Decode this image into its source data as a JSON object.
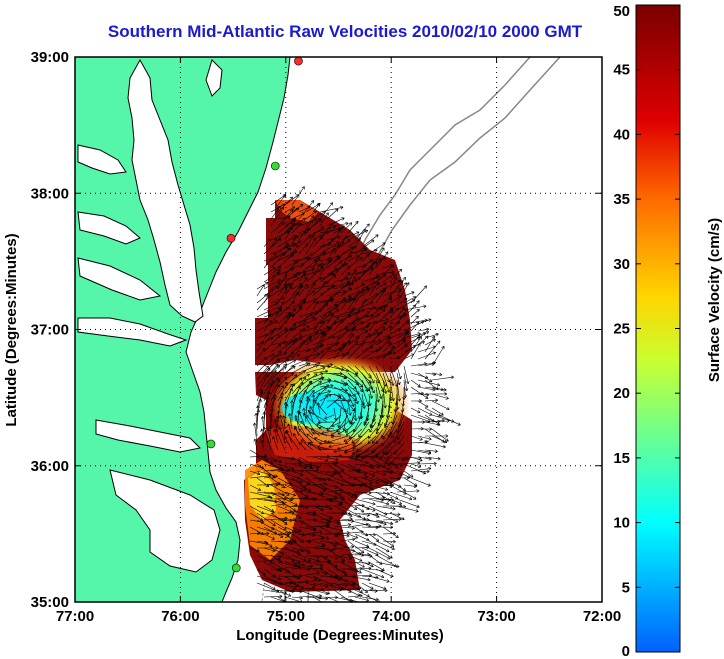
{
  "title": "Southern Mid-Atlantic Raw Velocities 2010/02/10 2000 GMT",
  "x_axis": {
    "label": "Longitude (Degrees:Minutes)",
    "ticks": [
      "77:00",
      "76:00",
      "75:00",
      "74:00",
      "73:00",
      "72:00"
    ]
  },
  "y_axis": {
    "label": "Latitude (Degrees:Minutes)",
    "ticks": [
      "39:00",
      "38:00",
      "37:00",
      "36:00",
      "35:00"
    ]
  },
  "colorbar": {
    "label": "Surface Velocity (cm/s)",
    "ticks": [
      "50",
      "45",
      "40",
      "35",
      "30",
      "25",
      "20",
      "15",
      "10",
      "5",
      "0"
    ],
    "min": 0,
    "max": 50
  },
  "map": {
    "lon_range": [
      -77,
      -72
    ],
    "lat_range": [
      35,
      39
    ],
    "grid": "dotted",
    "land_color": "#55f5aa",
    "coastline_color": "#000000",
    "bathymetry_color": "#888888",
    "vector_color": "#000000",
    "stations": [
      {
        "color": "#ff2a2a",
        "lon": -74.88,
        "lat": 38.97
      },
      {
        "color": "#33dd33",
        "lon": -75.1,
        "lat": 38.2
      },
      {
        "color": "#ff2a2a",
        "lon": -75.52,
        "lat": 37.67
      },
      {
        "color": "#33dd33",
        "lon": -75.71,
        "lat": 36.16
      },
      {
        "color": "#33dd33",
        "lon": -75.47,
        "lat": 35.25
      }
    ]
  }
}
